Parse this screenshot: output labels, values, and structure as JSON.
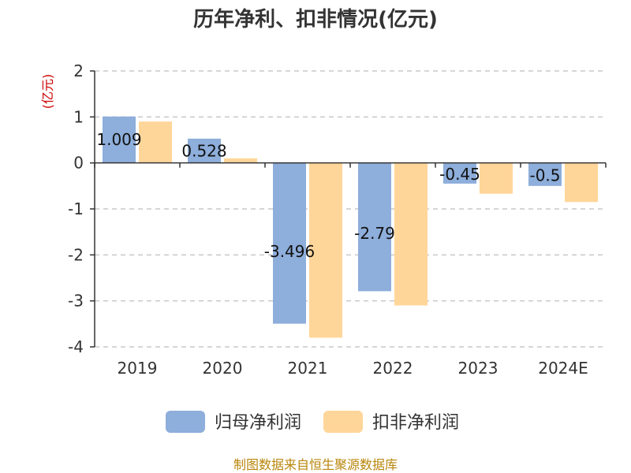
{
  "chart_data": {
    "type": "bar",
    "title": "历年净利、扣非情况(亿元)",
    "ylabel": "(亿元)",
    "categories": [
      "2019",
      "2020",
      "2021",
      "2022",
      "2023",
      "2024E"
    ],
    "ylim": [
      -4,
      2
    ],
    "yticks": [
      2,
      1,
      0,
      -1,
      -2,
      -3,
      -4
    ],
    "grid": true,
    "legend_position": "bottom",
    "series": [
      {
        "name": "归母净利润",
        "color": "#8eaedb",
        "values": [
          1.009,
          0.528,
          -3.496,
          -2.79,
          -0.45,
          -0.5
        ],
        "labels": [
          "1.009",
          "0.528",
          "-3.496",
          "-2.79",
          "-0.45",
          "-0.5"
        ]
      },
      {
        "name": "扣非净利润",
        "color": "#ffd699",
        "values": [
          0.9,
          0.1,
          -3.8,
          -3.1,
          -0.67,
          -0.85
        ]
      }
    ],
    "source": "制图数据来自恒生聚源数据库"
  }
}
